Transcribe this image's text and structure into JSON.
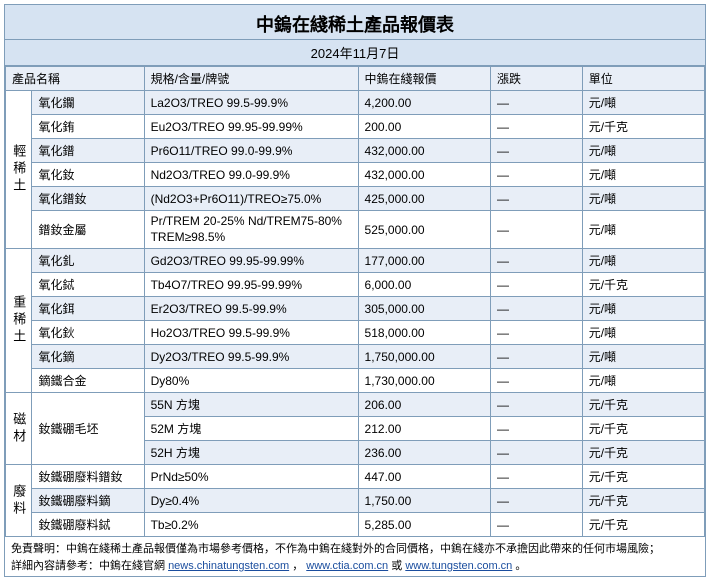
{
  "header": {
    "title": "中鎢在綫稀土產品報價表",
    "date": "2024年11月7日"
  },
  "columns": {
    "name": "產品名稱",
    "spec": "規格/含量/牌號",
    "price": "中鎢在綫報價",
    "change": "漲跌",
    "unit": "單位"
  },
  "categories": [
    {
      "label": "輕稀土",
      "rows": [
        {
          "name": "氧化鑭",
          "spec": "La2O3/TREO 99.5-99.9%",
          "price": "4,200.00",
          "change": "—",
          "unit": "元/噸",
          "alt": true
        },
        {
          "name": "氧化銪",
          "spec": "Eu2O3/TREO 99.95-99.99%",
          "price": "200.00",
          "change": "—",
          "unit": "元/千克",
          "alt": false
        },
        {
          "name": "氧化鐠",
          "spec": "Pr6O11/TREO 99.0-99.9%",
          "price": "432,000.00",
          "change": "—",
          "unit": "元/噸",
          "alt": true
        },
        {
          "name": "氧化釹",
          "spec": "Nd2O3/TREO 99.0-99.9%",
          "price": "432,000.00",
          "change": "—",
          "unit": "元/噸",
          "alt": false
        },
        {
          "name": "氧化鐠釹",
          "spec": "(Nd2O3+Pr6O11)/TREO≥75.0%",
          "price": "425,000.00",
          "change": "—",
          "unit": "元/噸",
          "alt": true
        },
        {
          "name": "鐠釹金屬",
          "spec": "Pr/TREM 20-25% Nd/TREM75-80% TREM≥98.5%",
          "price": "525,000.00",
          "change": "—",
          "unit": "元/噸",
          "alt": false,
          "tall": true
        }
      ]
    },
    {
      "label": "重稀土",
      "rows": [
        {
          "name": "氧化釓",
          "spec": "Gd2O3/TREO 99.95-99.99%",
          "price": "177,000.00",
          "change": "—",
          "unit": "元/噸",
          "alt": true
        },
        {
          "name": "氧化鋱",
          "spec": "Tb4O7/TREO 99.95-99.99%",
          "price": "6,000.00",
          "change": "—",
          "unit": "元/千克",
          "alt": false
        },
        {
          "name": "氧化鉺",
          "spec": "Er2O3/TREO 99.5-99.9%",
          "price": "305,000.00",
          "change": "—",
          "unit": "元/噸",
          "alt": true
        },
        {
          "name": "氧化鈥",
          "spec": "Ho2O3/TREO 99.5-99.9%",
          "price": "518,000.00",
          "change": "—",
          "unit": "元/噸",
          "alt": false
        },
        {
          "name": "氧化鏑",
          "spec": "Dy2O3/TREO 99.5-99.9%",
          "price": "1,750,000.00",
          "change": "—",
          "unit": "元/噸",
          "alt": true
        },
        {
          "name": "鏑鐵合金",
          "spec": "Dy80%",
          "price": "1,730,000.00",
          "change": "—",
          "unit": "元/噸",
          "alt": false
        }
      ]
    },
    {
      "label": "磁材",
      "rows": [
        {
          "name": "釹鐵硼毛坯",
          "rowspan": 3,
          "spec": "55N 方塊",
          "price": "206.00",
          "change": "—",
          "unit": "元/千克",
          "alt": true
        },
        {
          "spec": "52M 方塊",
          "price": "212.00",
          "change": "—",
          "unit": "元/千克",
          "alt": false
        },
        {
          "spec": "52H 方塊",
          "price": "236.00",
          "change": "—",
          "unit": "元/千克",
          "alt": true
        }
      ]
    },
    {
      "label": "廢料",
      "rows": [
        {
          "name": "釹鐵硼廢料鐠釹",
          "spec": "PrNd≥50%",
          "price": "447.00",
          "change": "—",
          "unit": "元/千克",
          "alt": false
        },
        {
          "name": "釹鐵硼廢料鏑",
          "spec": "Dy≥0.4%",
          "price": "1,750.00",
          "change": "—",
          "unit": "元/千克",
          "alt": true
        },
        {
          "name": "釹鐵硼廢料鋱",
          "spec": "Tb≥0.2%",
          "price": "5,285.00",
          "change": "—",
          "unit": "元/千克",
          "alt": false
        }
      ]
    }
  ],
  "footer": {
    "line1_pre": "免責聲明：中鎢在綫稀土產品報價僅為市場參考價格，不作為中鎢在綫對外的合同價格，中鎢在綫亦不承擔因此帶來的任何市場風險；",
    "line2_pre": "詳細內容請參考：中鎢在綫官網 ",
    "link1": "news.chinatungsten.com",
    "mid1": "，",
    "link2": "www.ctia.com.cn",
    "mid2": " 或 ",
    "link3": "www.tungsten.com.cn",
    "end": "。"
  }
}
